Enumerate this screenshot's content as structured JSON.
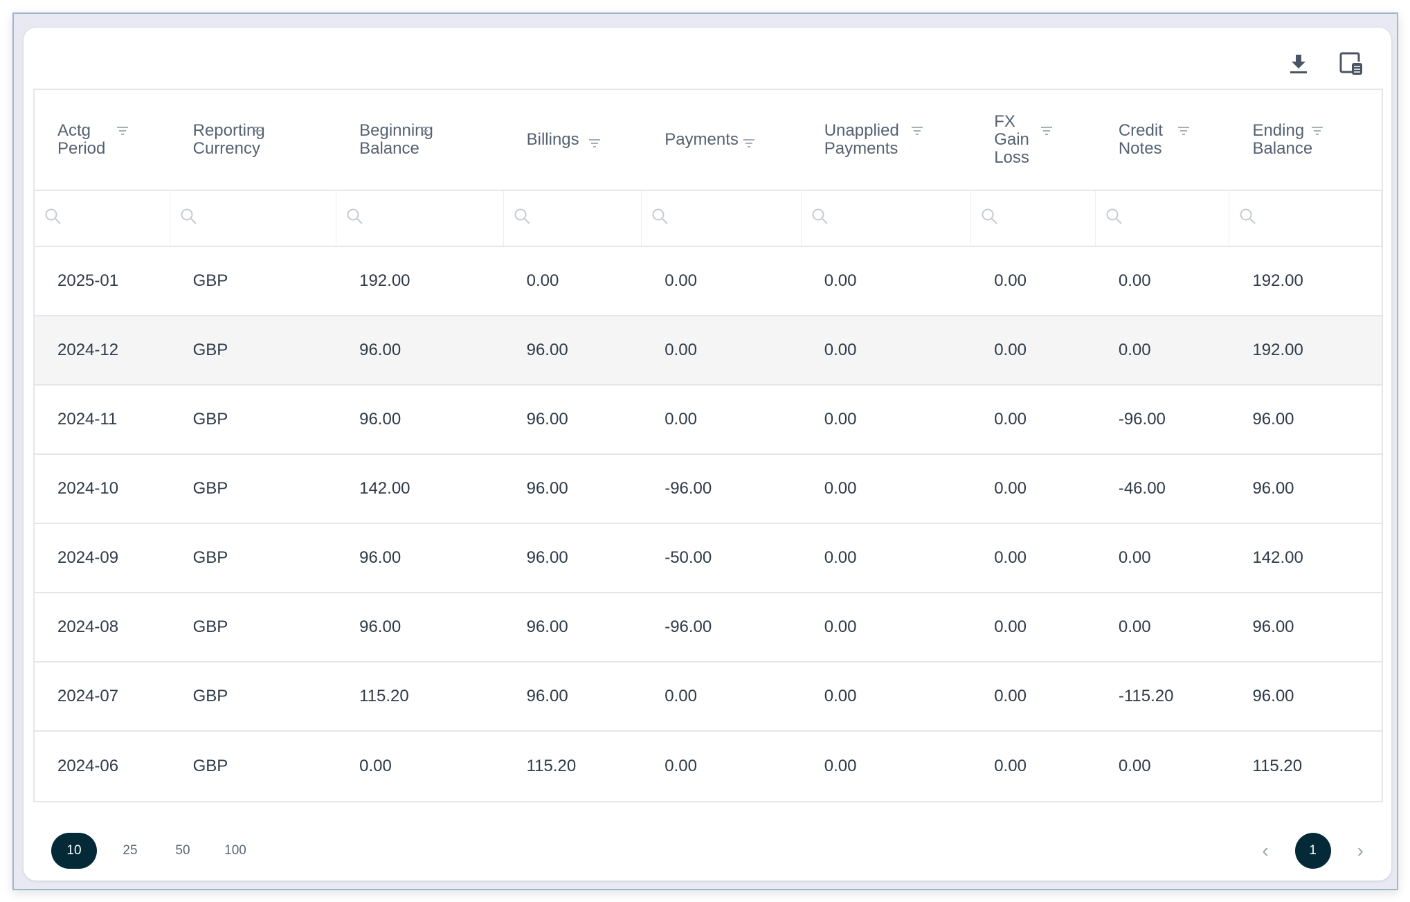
{
  "toolbar": {
    "download_icon": "download-icon",
    "columns_icon": "column-settings-icon"
  },
  "columns": [
    "Actg Period",
    "Reporting Currency",
    "Beginning Balance",
    "Billings",
    "Payments",
    "Unapplied Payments",
    "FX Gain Loss",
    "Credit Notes",
    "Ending Balance"
  ],
  "rows": [
    [
      "2025-01",
      "GBP",
      "192.00",
      "0.00",
      "0.00",
      "0.00",
      "0.00",
      "0.00",
      "192.00"
    ],
    [
      "2024-12",
      "GBP",
      "96.00",
      "96.00",
      "0.00",
      "0.00",
      "0.00",
      "0.00",
      "192.00"
    ],
    [
      "2024-11",
      "GBP",
      "96.00",
      "96.00",
      "0.00",
      "0.00",
      "0.00",
      "-96.00",
      "96.00"
    ],
    [
      "2024-10",
      "GBP",
      "142.00",
      "96.00",
      "-96.00",
      "0.00",
      "0.00",
      "-46.00",
      "96.00"
    ],
    [
      "2024-09",
      "GBP",
      "96.00",
      "96.00",
      "-50.00",
      "0.00",
      "0.00",
      "0.00",
      "142.00"
    ],
    [
      "2024-08",
      "GBP",
      "96.00",
      "96.00",
      "-96.00",
      "0.00",
      "0.00",
      "0.00",
      "96.00"
    ],
    [
      "2024-07",
      "GBP",
      "115.20",
      "96.00",
      "0.00",
      "0.00",
      "0.00",
      "-115.20",
      "96.00"
    ],
    [
      "2024-06",
      "GBP",
      "0.00",
      "115.20",
      "0.00",
      "0.00",
      "0.00",
      "0.00",
      "115.20"
    ]
  ],
  "highlighted_row": 1,
  "pagination": {
    "page_sizes": [
      "10",
      "25",
      "50",
      "100"
    ],
    "selected_page_size": "10",
    "current_page": "1"
  },
  "colors": {
    "accent": "#042a38"
  }
}
